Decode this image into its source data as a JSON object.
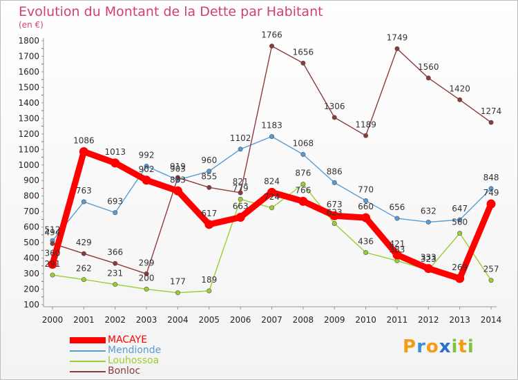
{
  "header": {
    "title": "Evolution du Montant de la Dette par Habitant",
    "unit": "(en €)"
  },
  "brand": {
    "letters": [
      "P",
      "r",
      "o",
      "x",
      "i",
      "t",
      "i"
    ],
    "colors": [
      "#f39c12",
      "#3b8fd8",
      "#f39c12",
      "#2a6fc9",
      "#7fc241",
      "#f39c12",
      "#7fc241"
    ]
  },
  "chart_data": {
    "type": "line",
    "title": "Evolution du Montant de la Dette par Habitant",
    "ylabel": "(en €)",
    "xlabel": "",
    "categories": [
      "2000",
      "2001",
      "2002",
      "2003",
      "2004",
      "2005",
      "2006",
      "2007",
      "2008",
      "2009",
      "2010",
      "2011",
      "2012",
      "2013",
      "2014"
    ],
    "yticks": [
      "100",
      "200",
      "300",
      "400",
      "500",
      "600",
      "700",
      "800",
      "900",
      "1000",
      "1100",
      "1200",
      "1300",
      "1400",
      "1500",
      "1600",
      "1700",
      "1800"
    ],
    "ylim": [
      100,
      1800
    ],
    "grid": false,
    "legend_position": "bottom-left",
    "series": [
      {
        "name": "MACAYE",
        "color": "#ff0000",
        "values": [
          360,
          1086,
          1013,
          902,
          833,
          617,
          663,
          824,
          766,
          673,
          660,
          421,
          333,
          269,
          749
        ]
      },
      {
        "name": "Mendionde",
        "color": "#5a9bd4",
        "values": [
          512,
          763,
          693,
          992,
          903,
          960,
          1102,
          1183,
          1068,
          886,
          770,
          656,
          632,
          647,
          848
        ]
      },
      {
        "name": "Louhossoa",
        "color": "#9acd32",
        "values": [
          291,
          262,
          231,
          200,
          177,
          189,
          779,
          724,
          876,
          623,
          436,
          383,
          323,
          560,
          257
        ]
      },
      {
        "name": "Bonloc",
        "color": "#8b3a3a",
        "values": [
          494,
          429,
          366,
          299,
          919,
          855,
          821,
          1766,
          1656,
          1306,
          1189,
          1749,
          1560,
          1420,
          1274
        ]
      }
    ]
  }
}
